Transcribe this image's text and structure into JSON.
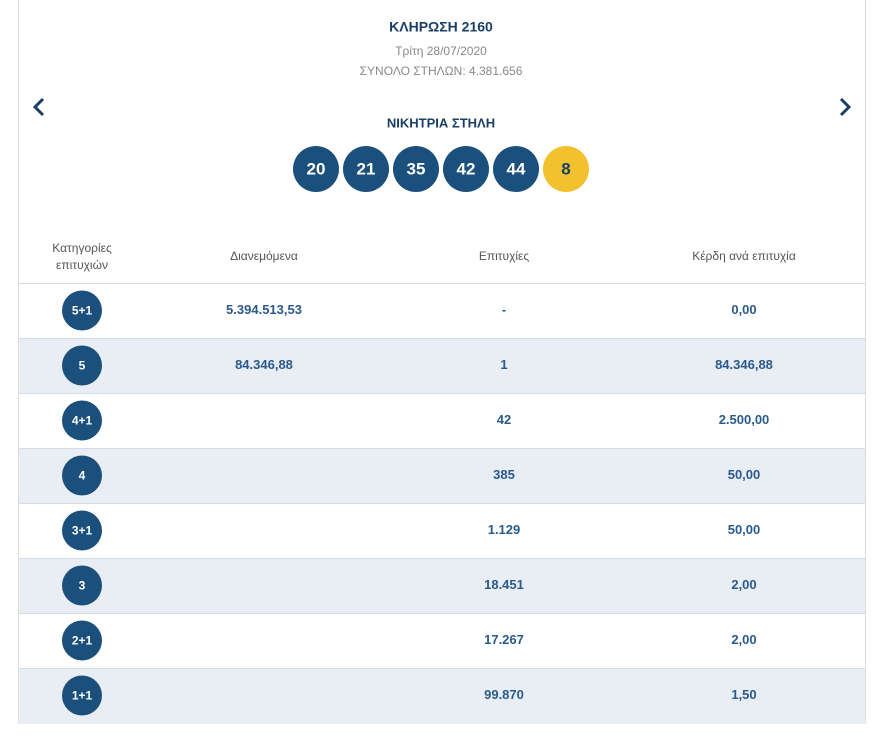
{
  "header": {
    "title": "ΚΛΗΡΩΣΗ 2160",
    "date": "Τρίτη 28/07/2020",
    "total_columns": "ΣΥΝΟΛΟ ΣΤΗΛΩΝ: 4.381.656"
  },
  "winning_column": {
    "label": "ΝΙΚΗΤΡΙΑ ΣΤΗΛΗ",
    "numbers": [
      20,
      21,
      35,
      42,
      44
    ],
    "joker": 8
  },
  "table": {
    "headers": [
      "Κατηγορίες επιτυχιών",
      "Διανεμόμενα",
      "Επιτυχίες",
      "Κέρδη ανά επιτυχία"
    ],
    "rows": [
      {
        "category": "5+1",
        "distributed": "5.394.513,53",
        "winners": "-",
        "prize": "0,00"
      },
      {
        "category": "5",
        "distributed": "84.346,88",
        "winners": "1",
        "prize": "84.346,88"
      },
      {
        "category": "4+1",
        "winners": "42",
        "prize": "2.500,00"
      },
      {
        "category": "4",
        "winners": "385",
        "prize": "50,00"
      },
      {
        "category": "3+1",
        "winners": "1.129",
        "prize": "50,00"
      },
      {
        "category": "3",
        "winners": "18.451",
        "prize": "2,00"
      },
      {
        "category": "2+1",
        "winners": "17.267",
        "prize": "2,00"
      },
      {
        "category": "1+1",
        "winners": "99.870",
        "prize": "1,50"
      }
    ]
  }
}
